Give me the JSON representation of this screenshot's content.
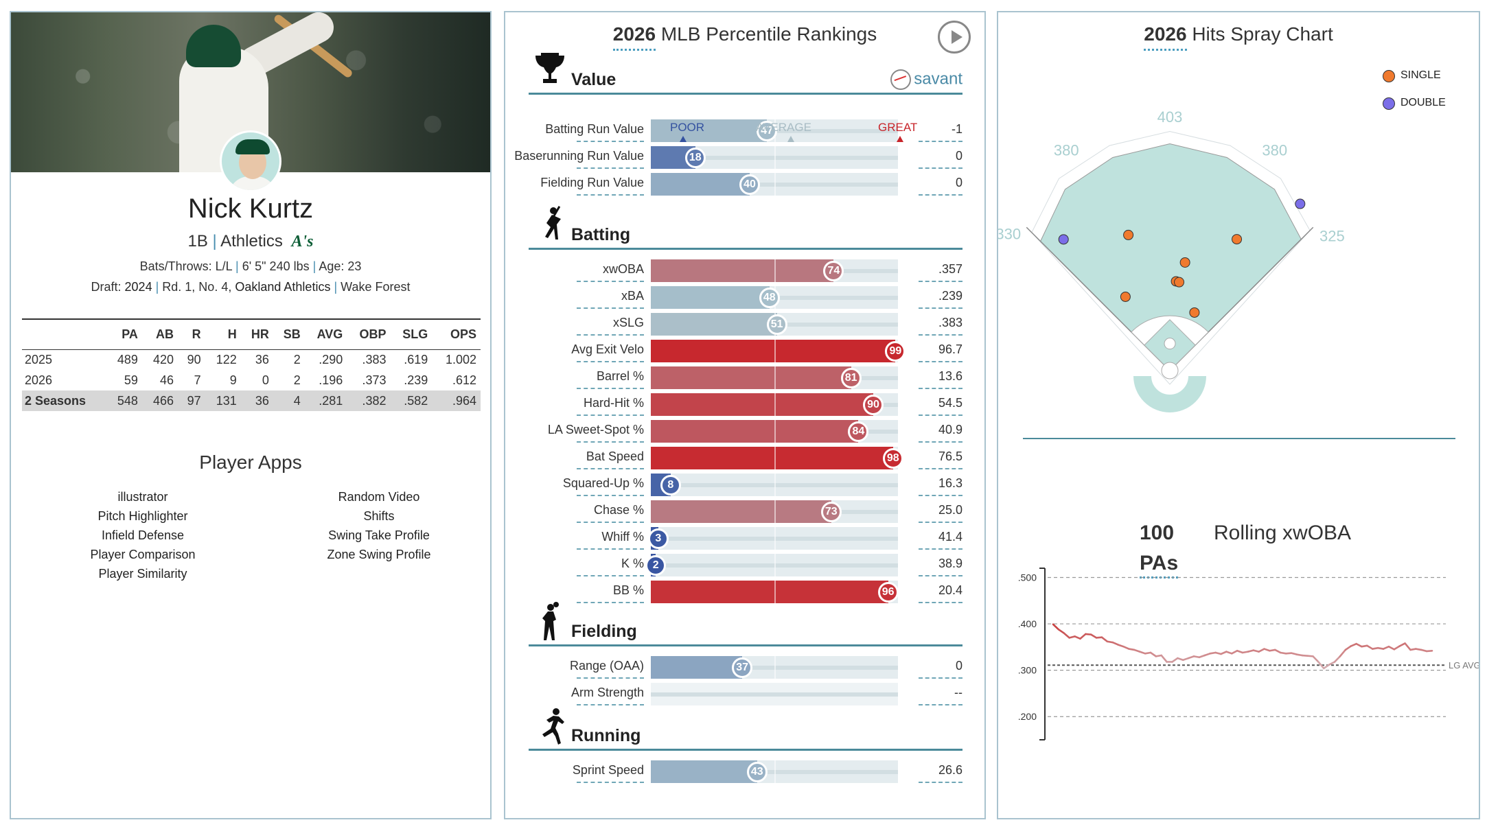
{
  "player": {
    "name": "Nick Kurtz",
    "position": "1B",
    "team": "Athletics",
    "team_logo": "A's",
    "bio_bats_label": "Bats/Throws: L/L",
    "bio_size": "6' 5\" 240 lbs",
    "bio_age": "Age: 23",
    "draft_label": "Draft:",
    "draft_year": "2024",
    "draft_pick": "Rd. 1, No. 4,",
    "draft_team": "Oakland Athletics",
    "draft_school": "Wake Forest"
  },
  "stats": {
    "headers": [
      "",
      "PA",
      "AB",
      "R",
      "H",
      "HR",
      "SB",
      "AVG",
      "OBP",
      "SLG",
      "OPS"
    ],
    "rows": [
      [
        "2025",
        "489",
        "420",
        "90",
        "122",
        "36",
        "2",
        ".290",
        ".383",
        ".619",
        "1.002"
      ],
      [
        "2026",
        "59",
        "46",
        "7",
        "9",
        "0",
        "2",
        ".196",
        ".373",
        ".239",
        ".612"
      ],
      [
        "2 Seasons",
        "548",
        "466",
        "97",
        "131",
        "36",
        "4",
        ".281",
        ".382",
        ".582",
        ".964"
      ]
    ]
  },
  "apps": {
    "title": "Player Apps",
    "left": [
      "illustrator",
      "Pitch Highlighter",
      "Infield Defense",
      "Player Comparison",
      "Player Similarity"
    ],
    "right": [
      "Random Video",
      "Shifts",
      "Swing Take Profile",
      "Zone Swing Profile"
    ]
  },
  "percentile": {
    "title_year": "2026",
    "title_rest": "MLB Percentile Rankings",
    "savant_label": "savant",
    "scale": {
      "poor": "POOR",
      "average": "AVERAGE",
      "great": "GREAT"
    },
    "sections": [
      {
        "title": "Value",
        "icon": "trophy-icon",
        "metrics": [
          {
            "label": "Batting Run Value",
            "pct": 47,
            "value": "-1"
          },
          {
            "label": "Baserunning Run Value",
            "pct": 18,
            "value": "0"
          },
          {
            "label": "Fielding Run Value",
            "pct": 40,
            "value": "0"
          }
        ]
      },
      {
        "title": "Batting",
        "icon": "batter-icon",
        "metrics": [
          {
            "label": "xwOBA",
            "pct": 74,
            "value": ".357"
          },
          {
            "label": "xBA",
            "pct": 48,
            "value": ".239"
          },
          {
            "label": "xSLG",
            "pct": 51,
            "value": ".383"
          },
          {
            "label": "Avg Exit Velo",
            "pct": 99,
            "value": "96.7"
          },
          {
            "label": "Barrel %",
            "pct": 81,
            "value": "13.6"
          },
          {
            "label": "Hard-Hit %",
            "pct": 90,
            "value": "54.5"
          },
          {
            "label": "LA Sweet-Spot %",
            "pct": 84,
            "value": "40.9"
          },
          {
            "label": "Bat Speed",
            "pct": 98,
            "value": "76.5"
          },
          {
            "label": "Squared-Up %",
            "pct": 8,
            "value": "16.3"
          },
          {
            "label": "Chase %",
            "pct": 73,
            "value": "25.0"
          },
          {
            "label": "Whiff %",
            "pct": 3,
            "value": "41.4"
          },
          {
            "label": "K %",
            "pct": 2,
            "value": "38.9"
          },
          {
            "label": "BB %",
            "pct": 96,
            "value": "20.4"
          }
        ]
      },
      {
        "title": "Fielding",
        "icon": "fielder-icon",
        "metrics": [
          {
            "label": "Range (OAA)",
            "pct": 37,
            "value": "0"
          },
          {
            "label": "Arm Strength",
            "pct": null,
            "value": "--"
          }
        ]
      },
      {
        "title": "Running",
        "icon": "runner-icon",
        "metrics": [
          {
            "label": "Sprint Speed",
            "pct": 43,
            "value": "26.6"
          }
        ]
      }
    ]
  },
  "spray": {
    "title_year": "2026",
    "title_rest": "Hits Spray Chart",
    "legend": [
      {
        "label": "SINGLE",
        "color": "#f07a2e"
      },
      {
        "label": "DOUBLE",
        "color": "#7b6ee8"
      }
    ],
    "distances": {
      "lf_line": "330",
      "lcf": "380",
      "cf": "403",
      "rcf": "380",
      "rf_line": "325"
    },
    "hits": [
      {
        "type": "DOUBLE",
        "angle": 52,
        "dist": 376
      },
      {
        "type": "DOUBLE",
        "angle": 129,
        "dist": 300
      },
      {
        "type": "SINGLE",
        "angle": 63,
        "dist": 262
      },
      {
        "type": "SINGLE",
        "angle": 107,
        "dist": 252
      },
      {
        "type": "SINGLE",
        "angle": 82,
        "dist": 194
      },
      {
        "type": "SINGLE",
        "angle": 86,
        "dist": 159
      },
      {
        "type": "SINGLE",
        "angle": 84,
        "dist": 158
      },
      {
        "type": "SINGLE",
        "angle": 121,
        "dist": 153
      },
      {
        "type": "SINGLE",
        "angle": 67,
        "dist": 112
      }
    ]
  },
  "rolling": {
    "pa_count": "100",
    "pa_label": "PAs",
    "title": "Rolling xwOBA",
    "lg_avg_label": "LG AVG"
  },
  "chart_data": {
    "type": "line",
    "title": "Rolling xwOBA",
    "ylim": [
      0.15,
      0.52
    ],
    "yticks": [
      ".500",
      ".400",
      ".300",
      ".200"
    ],
    "lg_avg": 0.311,
    "series": [
      {
        "values": [
          0.399,
          0.388,
          0.38,
          0.37,
          0.373,
          0.368,
          0.378,
          0.377,
          0.37,
          0.371,
          0.362,
          0.36,
          0.355,
          0.351,
          0.346,
          0.344,
          0.34,
          0.336,
          0.338,
          0.33,
          0.332,
          0.318,
          0.318,
          0.326,
          0.322,
          0.326,
          0.33,
          0.328,
          0.332,
          0.336,
          0.338,
          0.335,
          0.34,
          0.336,
          0.342,
          0.338,
          0.34,
          0.343,
          0.34,
          0.346,
          0.342,
          0.344,
          0.338,
          0.336,
          0.337,
          0.334,
          0.332,
          0.331,
          0.33,
          0.318,
          0.304,
          0.312,
          0.318,
          0.33,
          0.344,
          0.352,
          0.357,
          0.351,
          0.353,
          0.346,
          0.348,
          0.346,
          0.351,
          0.345,
          0.352,
          0.358,
          0.344,
          0.346,
          0.344,
          0.341,
          0.342
        ]
      }
    ]
  }
}
